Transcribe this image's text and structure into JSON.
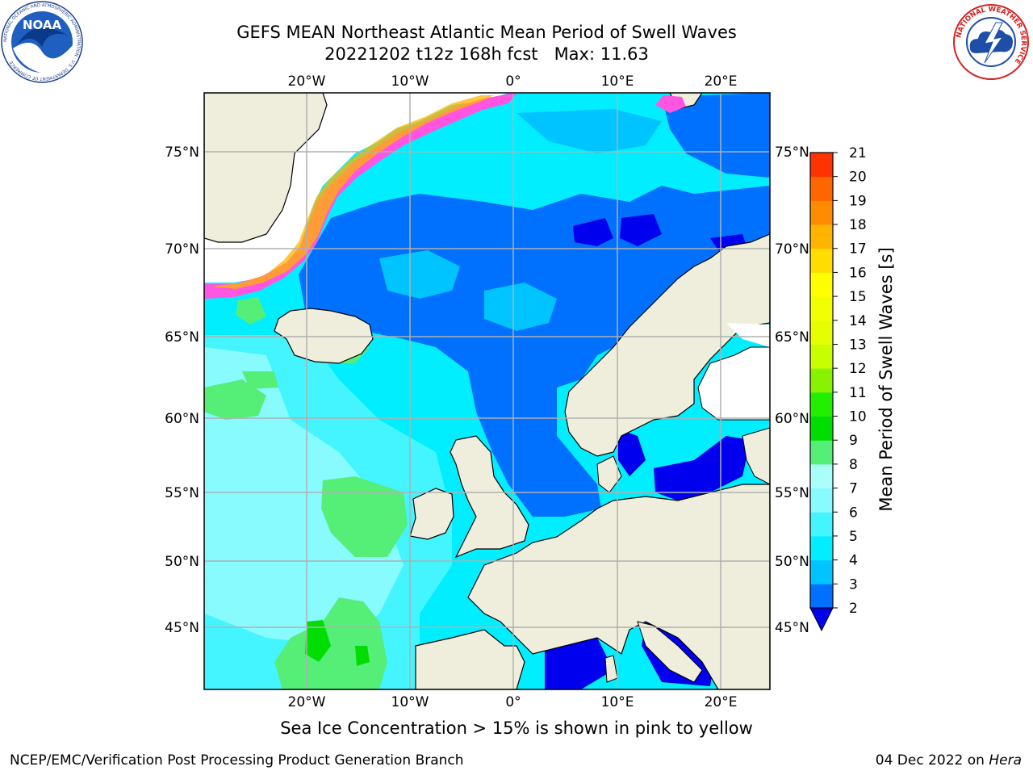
{
  "title": {
    "line1": "GEFS MEAN Northeast Atlantic Mean Period of Swell Waves",
    "line2": "20221202 t12z 168h fcst   Max: 11.63"
  },
  "logos": {
    "left": "NOAA",
    "left_ring_text": "NATIONAL OCEANIC AND ATMOSPHERIC ADMINISTRATION · U.S. DEPARTMENT OF COMMERCE",
    "right_ring_text": "NATIONAL WEATHER SERVICE"
  },
  "map": {
    "lon_ticks": [
      "20°W",
      "10°W",
      "0°",
      "10°E",
      "20°E"
    ],
    "lat_ticks_left": [
      "75°N",
      "70°N",
      "65°N",
      "60°N",
      "55°N",
      "50°N",
      "45°N"
    ],
    "lat_ticks_right": [
      "75°N",
      "70°N",
      "65°N",
      "60°N",
      "55°N",
      "50°N",
      "45°N"
    ],
    "colors": {
      "land": "#efeedc",
      "ice": "#ff55e0",
      "grid": "#b0b0b0"
    }
  },
  "colorbar": {
    "label": "Mean Period of Swell Waves [s]",
    "tick_labels": [
      "2",
      "3",
      "4",
      "5",
      "6",
      "7",
      "8",
      "9",
      "10",
      "11",
      "12",
      "13",
      "14",
      "15",
      "16",
      "17",
      "18",
      "19",
      "20",
      "21"
    ],
    "colors": [
      "#0070ff",
      "#00c4ff",
      "#00eeff",
      "#44f5ff",
      "#88fbff",
      "#aafffa",
      "#55ee77",
      "#00dd00",
      "#22ee00",
      "#88f200",
      "#c8ff00",
      "#e6ff00",
      "#f2ff00",
      "#ffff00",
      "#ffdd00",
      "#ffb400",
      "#ff8c00",
      "#ff6600",
      "#ff3300",
      "#ff0000"
    ],
    "extend_color": "#0000ee"
  },
  "footer": {
    "note": "Sea Ice Concentration > 15% is shown in pink to yellow",
    "credit": "NCEP/EMC/Verification Post Processing Product Generation Branch",
    "date": "04 Dec 2022 on",
    "machine": "Hera"
  }
}
